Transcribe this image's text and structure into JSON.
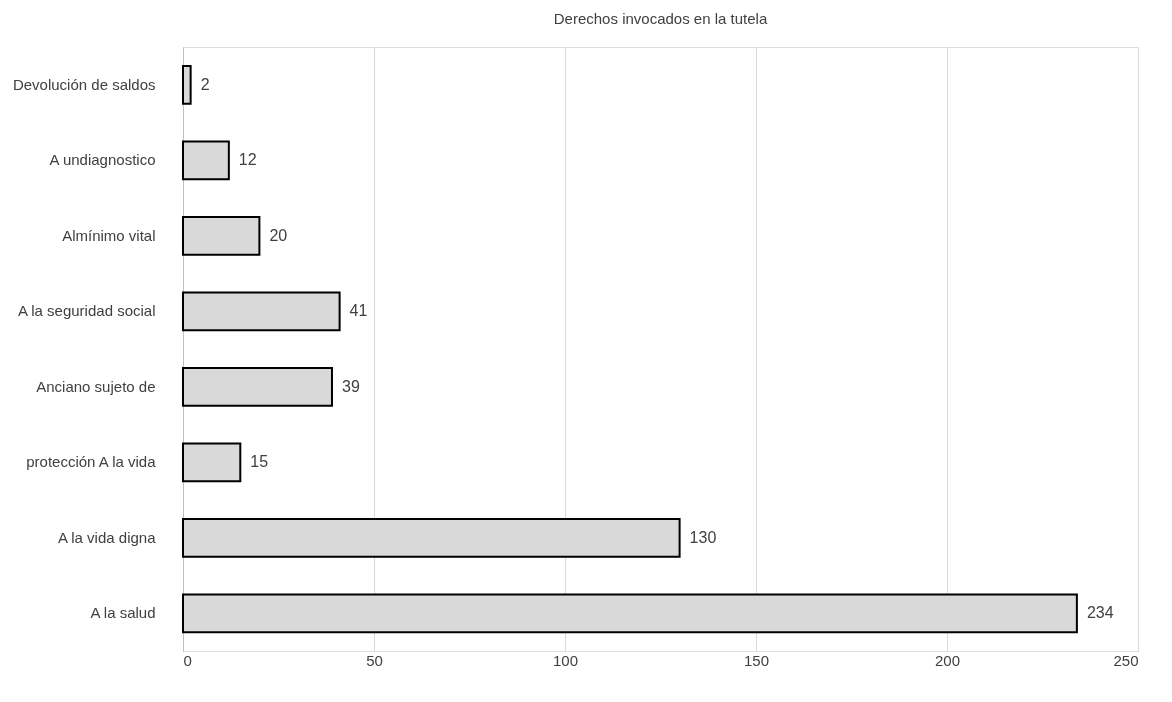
{
  "chart_data": {
    "type": "bar",
    "orientation": "horizontal",
    "title": "Derechos invocados en la tutela",
    "categories": [
      "Devolución de saldos",
      "A undiagnostico",
      "Almínimo vital",
      "A la seguridad social",
      "Anciano sujeto de",
      "protección A la vida",
      "A la vida digna",
      "A la salud"
    ],
    "values": [
      2,
      12,
      20,
      41,
      39,
      15,
      130,
      234
    ],
    "color": "#d9d9d9",
    "xlim": [
      0,
      250
    ],
    "xticks": [
      0,
      50,
      100,
      150,
      200,
      250
    ],
    "grid": "x",
    "data_labels": true
  }
}
